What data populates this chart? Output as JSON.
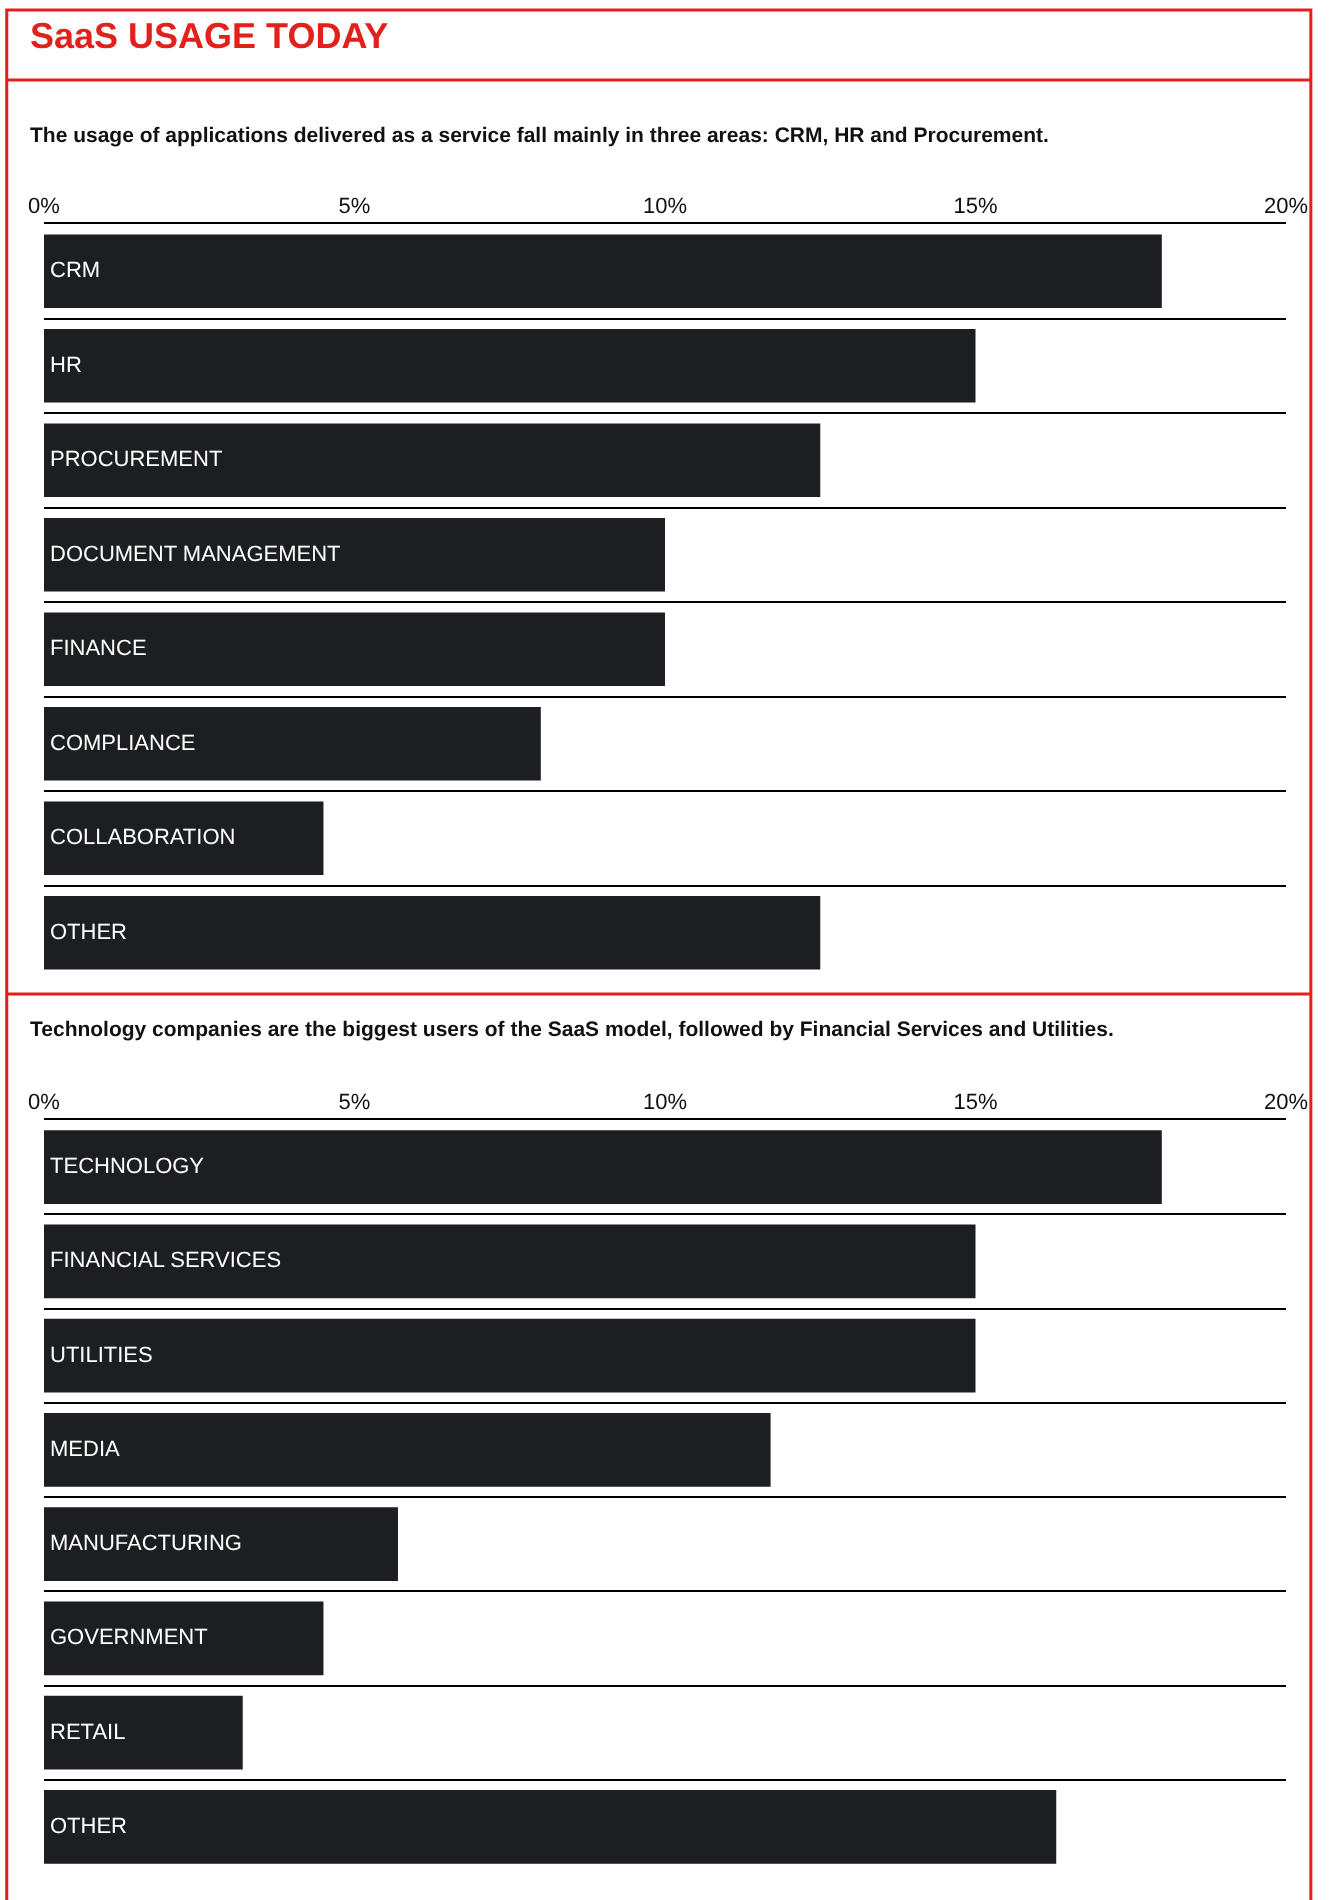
{
  "chart_data": [
    {
      "type": "bar",
      "orientation": "horizontal",
      "title": "SaaS USAGE TODAY",
      "subtitle": "The usage of applications delivered as a service fall mainly in three areas: CRM, HR and Procurement.",
      "categories": [
        "CRM",
        "HR",
        "PROCUREMENT",
        "DOCUMENT MANAGEMENT",
        "FINANCE",
        "COMPLIANCE",
        "COLLABORATION",
        "OTHER"
      ],
      "values": [
        18,
        15,
        12.5,
        10,
        10,
        8,
        4.5,
        12.5
      ],
      "color": "#1d1e21",
      "xlim": [
        0,
        20
      ],
      "xticks": [
        {
          "value": 0,
          "label": "0%"
        },
        {
          "value": 5,
          "label": "5%"
        },
        {
          "value": 10,
          "label": "10%"
        },
        {
          "value": 15,
          "label": "15%"
        },
        {
          "value": 20,
          "label": "20%"
        }
      ],
      "grid": "y",
      "tick_labels": "x"
    },
    {
      "type": "bar",
      "orientation": "horizontal",
      "subtitle": "Technology companies are the biggest users of the SaaS model, followed by Financial Services and Utilities.",
      "categories": [
        "TECHNOLOGY",
        "FINANCIAL SERVICES",
        "UTILITIES",
        "MEDIA",
        "MANUFACTURING",
        "GOVERNMENT",
        "RETAIL",
        "OTHER"
      ],
      "values": [
        18,
        15,
        15,
        11.7,
        5.7,
        4.5,
        3.2,
        16.3
      ],
      "color": "#1d1e21",
      "xlim": [
        0,
        20
      ],
      "xticks": [
        {
          "value": 0,
          "label": "0%"
        },
        {
          "value": 5,
          "label": "5%"
        },
        {
          "value": 10,
          "label": "10%"
        },
        {
          "value": 15,
          "label": "15%"
        },
        {
          "value": 20,
          "label": "20%"
        }
      ],
      "grid": "y",
      "tick_labels": "x"
    }
  ]
}
